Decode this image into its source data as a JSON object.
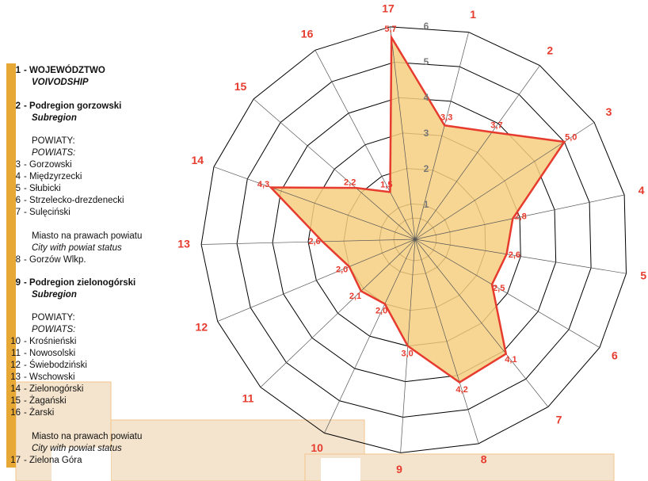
{
  "chart_data": {
    "type": "radar",
    "categories": [
      "1",
      "2",
      "3",
      "4",
      "5",
      "6",
      "7",
      "8",
      "9",
      "10",
      "11",
      "12",
      "13",
      "14",
      "15",
      "16",
      "17"
    ],
    "values": [
      3.3,
      3.7,
      5.0,
      2.8,
      2.6,
      2.5,
      4.1,
      4.2,
      3.0,
      2.0,
      2.1,
      2.0,
      2.6,
      4.3,
      2.2,
      1.5,
      5.7
    ],
    "value_labels": [
      "3,3",
      "3,7",
      "5,0",
      "2,8",
      "2,6",
      "2,5",
      "4,1",
      "4,2",
      "3,0",
      "2,0",
      "2,1",
      "2,0",
      "2,6",
      "4,3",
      "2,2",
      "1,5",
      "5,7"
    ],
    "color": "#f6cf80",
    "line_color": "#e63b2e",
    "rlim": [
      0,
      6
    ],
    "rticks": [
      1,
      2,
      3,
      4,
      5,
      6
    ],
    "grid": true,
    "legend_lines": [
      {
        "number": "1",
        "text": "- WOJEWÓDZTWO",
        "style": "bold"
      },
      {
        "text": "VOIVODSHIP",
        "style": "bold-italic"
      },
      {
        "number": "2",
        "text": "- Podregion gorzowski",
        "style": "bold"
      },
      {
        "text": "Subregion",
        "style": "bold-italic"
      },
      {
        "text": "POWIATY:",
        "style": "normal"
      },
      {
        "text": "POWIATS:",
        "style": "italic"
      },
      {
        "number": "3",
        "text": "- Gorzowski",
        "style": "normal"
      },
      {
        "number": "4",
        "text": "- Międzyrzecki",
        "style": "normal"
      },
      {
        "number": "5",
        "text": "- Słubicki",
        "style": "normal"
      },
      {
        "number": "6",
        "text": "- Strzelecko-drezdenecki",
        "style": "normal"
      },
      {
        "number": "7",
        "text": "- Sulęciński",
        "style": "normal"
      },
      {
        "text": "Miasto na prawach powiatu",
        "style": "normal"
      },
      {
        "text": "City with powiat status",
        "style": "italic"
      },
      {
        "number": "8",
        "text": "- Gorzów Wlkp.",
        "style": "normal"
      },
      {
        "number": "9",
        "text": "- Podregion zielonogórski",
        "style": "bold"
      },
      {
        "text": "Subregion",
        "style": "bold-italic"
      },
      {
        "text": "POWIATY:",
        "style": "normal"
      },
      {
        "text": "POWIATS:",
        "style": "italic"
      },
      {
        "number": "10",
        "text": "- Krośnieński",
        "style": "normal"
      },
      {
        "number": "11",
        "text": "- Nowosolski",
        "style": "normal"
      },
      {
        "number": "12",
        "text": "- Świebodziński",
        "style": "normal"
      },
      {
        "number": "13",
        "text": "- Wschowski",
        "style": "normal"
      },
      {
        "number": "14",
        "text": "- Zielonogórski",
        "style": "normal"
      },
      {
        "number": "15",
        "text": "- Żagański",
        "style": "normal"
      },
      {
        "number": "16",
        "text": "- Żarski",
        "style": "normal"
      },
      {
        "text": "Miasto na prawach powiatu",
        "style": "normal"
      },
      {
        "text": "City with powiat status",
        "style": "italic"
      },
      {
        "number": "17",
        "text": "- Zielona Góra",
        "style": "normal"
      }
    ]
  }
}
